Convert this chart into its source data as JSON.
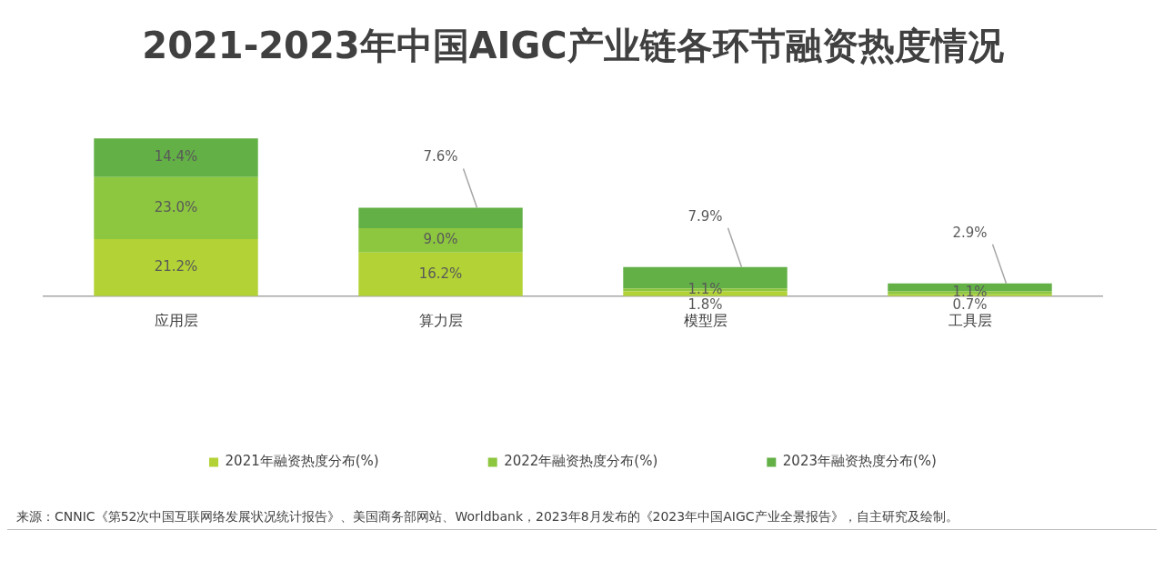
{
  "chart_data": {
    "type": "bar",
    "title": "2021-2023年中国AIGC产业链各环节融资热度情况",
    "categories": [
      "应用层",
      "算力层",
      "模型层",
      "工具层"
    ],
    "stacked": true,
    "legend": "bottom",
    "grid": false,
    "tick_labels": "x",
    "series": [
      {
        "name": "2021年融资热度分布(%)",
        "color": "#b2d235",
        "values": [
          21.2,
          16.2,
          1.8,
          0.7
        ],
        "value_labels": [
          "21.2%",
          "16.2%",
          "1.8%",
          "0.7%"
        ]
      },
      {
        "name": "2022年融资热度分布(%)",
        "color": "#8dc63f",
        "values": [
          23.0,
          9.0,
          1.1,
          1.1
        ],
        "value_labels": [
          "23.0%",
          "9.0%",
          "1.1%",
          "1.1%"
        ]
      },
      {
        "name": "2023年融资热度分布(%)",
        "color": "#62b046",
        "values": [
          14.4,
          7.6,
          7.9,
          2.9
        ],
        "value_labels": [
          "14.4%",
          "7.6%",
          "7.9%",
          "2.9%"
        ]
      }
    ],
    "annotations": [
      "来源：CNNIC《第52次中国互联网络发展状况统计报告》、美国商务部网站、Worldbank，2023年8月发布的《2023年中国AIGC产业全景报告》，自主研究及绘制。"
    ]
  }
}
